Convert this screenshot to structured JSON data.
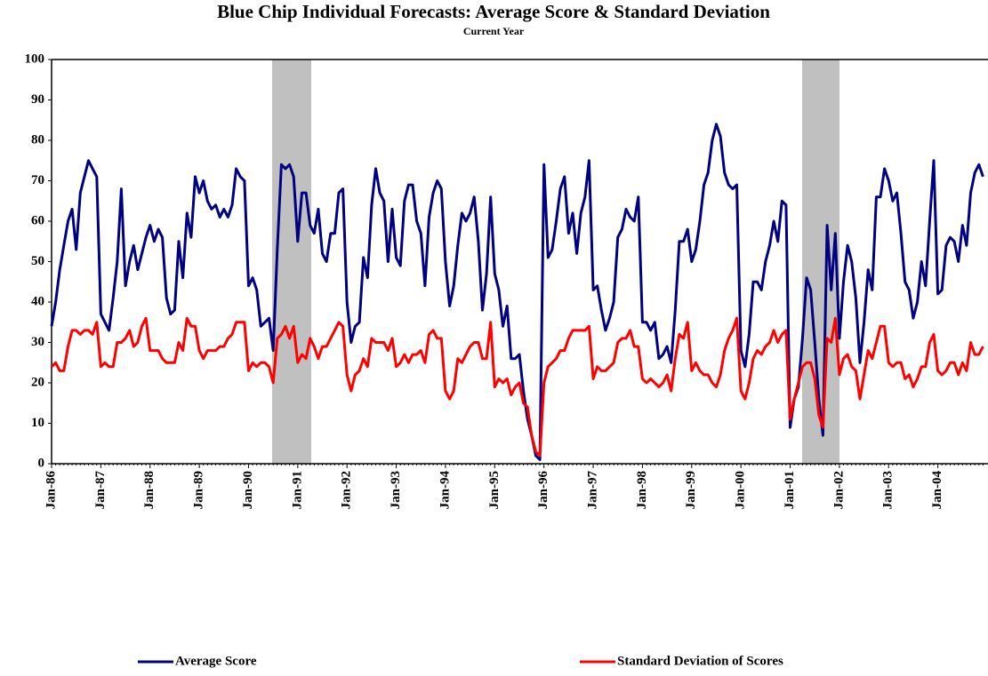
{
  "chart_data": {
    "type": "line",
    "title": "Blue Chip Individual Forecasts: Average Score & Standard Deviation",
    "subtitle": "Current Year",
    "categories": [
      "Jan-86",
      null,
      null,
      null,
      null,
      null,
      null,
      null,
      null,
      null,
      null,
      null,
      "Jan-87",
      null,
      null,
      null,
      null,
      null,
      null,
      null,
      null,
      null,
      null,
      null,
      "Jan-88",
      null,
      null,
      null,
      null,
      null,
      null,
      null,
      null,
      null,
      null,
      null,
      "Jan-89",
      null,
      null,
      null,
      null,
      null,
      null,
      null,
      null,
      null,
      null,
      null,
      "Jan-90",
      null,
      null,
      null,
      null,
      null,
      null,
      null,
      null,
      null,
      null,
      null,
      "Jan-91",
      null,
      null,
      null,
      null,
      null,
      null,
      null,
      null,
      null,
      null,
      null,
      "Jan-92",
      null,
      null,
      null,
      null,
      null,
      null,
      null,
      null,
      null,
      null,
      null,
      "Jan-93",
      null,
      null,
      null,
      null,
      null,
      null,
      null,
      null,
      null,
      null,
      null,
      "Jan-94",
      null,
      null,
      null,
      null,
      null,
      null,
      null,
      null,
      null,
      null,
      null,
      "Jan-95",
      null,
      null,
      null,
      null,
      null,
      null,
      null,
      null,
      null,
      null,
      null,
      "Jan-96",
      null,
      null,
      null,
      null,
      null,
      null,
      null,
      null,
      null,
      null,
      null,
      "Jan-97",
      null,
      null,
      null,
      null,
      null,
      null,
      null,
      null,
      null,
      null,
      null,
      "Jan-98",
      null,
      null,
      null,
      null,
      null,
      null,
      null,
      null,
      null,
      null,
      null,
      "Jan-99",
      null,
      null,
      null,
      null,
      null,
      null,
      null,
      null,
      null,
      null,
      null,
      "Jan-00",
      null,
      null,
      null,
      null,
      null,
      null,
      null,
      null,
      null,
      null,
      null,
      "Jan-01",
      null,
      null,
      null,
      null,
      null,
      null,
      null,
      null,
      null,
      null,
      null,
      "Jan-02",
      null,
      null,
      null,
      null,
      null,
      null,
      null,
      null,
      null,
      null,
      null,
      "Jan-03",
      null,
      null,
      null,
      null,
      null,
      null,
      null,
      null,
      null,
      null,
      null,
      "Jan-04",
      null,
      null,
      null,
      null,
      null,
      null,
      null,
      null,
      null,
      null,
      null
    ],
    "series": [
      {
        "name": "Average Score",
        "color": "#000080",
        "values": [
          34,
          40,
          48,
          54,
          60,
          63,
          53,
          67,
          71,
          75,
          73,
          71,
          37,
          35,
          33,
          41,
          50,
          68,
          44,
          50,
          54,
          48,
          52,
          56,
          59,
          55,
          58,
          56,
          41,
          37,
          38,
          55,
          46,
          62,
          56,
          71,
          67,
          70,
          65,
          63,
          64,
          61,
          63,
          61,
          64,
          73,
          71,
          70,
          44,
          46,
          43,
          34,
          35,
          36,
          28,
          53,
          74,
          73,
          74,
          71,
          55,
          67,
          67,
          59,
          57,
          63,
          52,
          50,
          57,
          57,
          67,
          68,
          40,
          30,
          34,
          35,
          51,
          46,
          64,
          73,
          67,
          65,
          50,
          63,
          51,
          49,
          65,
          69,
          69,
          60,
          57,
          44,
          61,
          67,
          70,
          68,
          50,
          39,
          44,
          54,
          62,
          60,
          62,
          66,
          55,
          38,
          47,
          66,
          47,
          43,
          34,
          39,
          26,
          26,
          27,
          18,
          11,
          7,
          2,
          1,
          74,
          51,
          53,
          60,
          68,
          71,
          57,
          62,
          52,
          62,
          66,
          75,
          43,
          44,
          38,
          33,
          36,
          40,
          56,
          58,
          63,
          61,
          60,
          66,
          35,
          35,
          33,
          35,
          26,
          27,
          29,
          25,
          38,
          55,
          55,
          58,
          50,
          53,
          60,
          69,
          72,
          80,
          84,
          81,
          72,
          69,
          68,
          69,
          28,
          24,
          32,
          45,
          45,
          43,
          50,
          54,
          60,
          55,
          65,
          64,
          9,
          16,
          19,
          31,
          46,
          43,
          30,
          16,
          7,
          59,
          43,
          57,
          31,
          45,
          54,
          50,
          41,
          25,
          35,
          48,
          43,
          66,
          66,
          73,
          70,
          65,
          67,
          57,
          45,
          43,
          36,
          40,
          50,
          44,
          60,
          75,
          42,
          43,
          54,
          56,
          55,
          50,
          59,
          54,
          67,
          72,
          74,
          71
        ]
      },
      {
        "name": "Standard Deviation of Scores",
        "color": "#ff0000",
        "values": [
          24,
          25,
          23,
          23,
          29,
          33,
          33,
          32,
          33,
          33,
          32,
          35,
          24,
          25,
          24,
          24,
          30,
          30,
          31,
          33,
          29,
          30,
          34,
          36,
          28,
          28,
          28,
          26,
          25,
          25,
          25,
          30,
          28,
          36,
          34,
          34,
          28,
          26,
          28,
          28,
          28,
          29,
          29,
          31,
          32,
          35,
          35,
          35,
          23,
          25,
          24,
          25,
          25,
          24,
          20,
          31,
          32,
          34,
          31,
          34,
          25,
          27,
          26,
          31,
          29,
          26,
          29,
          29,
          31,
          33,
          35,
          34,
          22,
          18,
          22,
          23,
          26,
          24,
          31,
          30,
          30,
          30,
          28,
          31,
          24,
          25,
          27,
          25,
          27,
          27,
          28,
          25,
          32,
          33,
          31,
          31,
          18,
          16,
          18,
          26,
          25,
          27,
          29,
          30,
          30,
          26,
          26,
          35,
          19,
          21,
          20,
          21,
          17,
          19,
          20,
          15,
          14,
          7,
          3,
          2,
          20,
          24,
          25,
          26,
          28,
          28,
          31,
          33,
          33,
          33,
          33,
          34,
          21,
          24,
          23,
          23,
          24,
          25,
          30,
          31,
          31,
          33,
          29,
          29,
          21,
          20,
          21,
          20,
          19,
          20,
          22,
          18,
          26,
          32,
          31,
          35,
          23,
          25,
          23,
          22,
          22,
          20,
          19,
          22,
          28,
          31,
          33,
          36,
          18,
          16,
          20,
          26,
          28,
          27,
          29,
          30,
          33,
          30,
          32,
          33,
          11,
          16,
          20,
          24,
          25,
          25,
          21,
          12,
          9,
          31,
          30,
          36,
          22,
          26,
          27,
          24,
          23,
          16,
          22,
          28,
          26,
          30,
          34,
          34,
          25,
          24,
          25,
          25,
          21,
          22,
          19,
          21,
          24,
          24,
          30,
          32,
          23,
          22,
          23,
          25,
          25,
          22,
          25,
          23,
          30,
          27,
          27,
          29
        ]
      }
    ],
    "ylim": [
      0,
      100
    ],
    "yticks": [
      0,
      10,
      20,
      30,
      40,
      50,
      60,
      70,
      80,
      90,
      100
    ],
    "grid": false,
    "legend": "bottom"
  }
}
